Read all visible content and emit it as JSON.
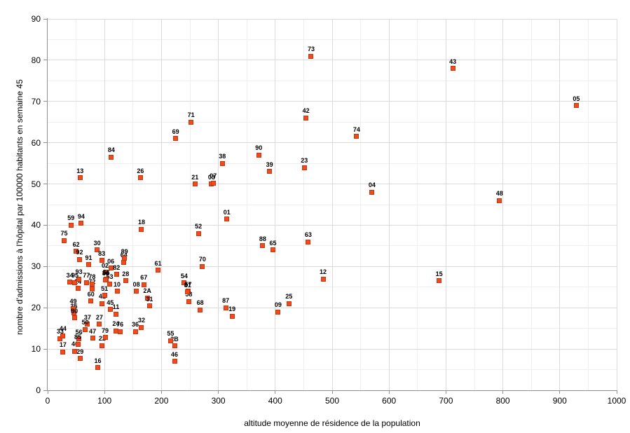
{
  "axes": {
    "x": {
      "title": "altitude moyenne de résidence de la population",
      "min": 0,
      "max": 1000,
      "major_step": 100,
      "minor_step": 50,
      "tick_labels": [
        "0",
        "100",
        "200",
        "300",
        "400",
        "500",
        "600",
        "700",
        "800",
        "900",
        "1000"
      ]
    },
    "y": {
      "title": "nombre d'admissions à l'hôpital par 100000 habitants en semaine 45",
      "min": 0,
      "max": 90,
      "major_step": 10,
      "minor_step": 5,
      "tick_labels": [
        "0",
        "10",
        "20",
        "30",
        "40",
        "50",
        "60",
        "70",
        "80",
        "90"
      ]
    }
  },
  "colors": {
    "point_fill": "#f04b1e",
    "point_border": "#c8370d",
    "grid_major": "#dadada",
    "grid_minor": "#efefef",
    "axis_line": "#8f8f8f",
    "label_text": "#000000"
  },
  "chart_data": {
    "type": "scatter",
    "title": "",
    "xlabel": "altitude moyenne de résidence de la population",
    "ylabel": "nombre d'admissions à l'hôpital par 100000 habitants en semaine 45",
    "xlim": [
      0,
      1000
    ],
    "ylim": [
      0,
      90
    ],
    "grid": true,
    "point_labels_shown": true,
    "points": [
      {
        "label": "01",
        "x": 315,
        "y": 41.5
      },
      {
        "label": "02",
        "x": 101,
        "y": 28.6
      },
      {
        "label": "03",
        "x": 288,
        "y": 50.0
      },
      {
        "label": "04",
        "x": 570,
        "y": 48.0
      },
      {
        "label": "05",
        "x": 929,
        "y": 69.0
      },
      {
        "label": "06",
        "x": 111,
        "y": 29.6
      },
      {
        "label": "07",
        "x": 291,
        "y": 50.2
      },
      {
        "label": "08",
        "x": 156,
        "y": 24.0
      },
      {
        "label": "09",
        "x": 405,
        "y": 19.0
      },
      {
        "label": "10",
        "x": 122,
        "y": 24.0
      },
      {
        "label": "11",
        "x": 120,
        "y": 18.5
      },
      {
        "label": "12",
        "x": 484,
        "y": 27.0
      },
      {
        "label": "13",
        "x": 57,
        "y": 51.5
      },
      {
        "label": "14",
        "x": 53,
        "y": 24.7
      },
      {
        "label": "15",
        "x": 688,
        "y": 26.5
      },
      {
        "label": "16",
        "x": 88,
        "y": 5.5
      },
      {
        "label": "17",
        "x": 27,
        "y": 9.3
      },
      {
        "label": "18",
        "x": 165,
        "y": 39.0
      },
      {
        "label": "19",
        "x": 324,
        "y": 18.0
      },
      {
        "label": "21",
        "x": 259,
        "y": 50.0
      },
      {
        "label": "22",
        "x": 96,
        "y": 10.8
      },
      {
        "label": "23",
        "x": 451,
        "y": 54.0
      },
      {
        "label": "24",
        "x": 120,
        "y": 14.4
      },
      {
        "label": "25",
        "x": 424,
        "y": 21.0
      },
      {
        "label": "26",
        "x": 163,
        "y": 51.5
      },
      {
        "label": "27",
        "x": 91,
        "y": 16.0
      },
      {
        "label": "28",
        "x": 137,
        "y": 26.5
      },
      {
        "label": "29",
        "x": 57,
        "y": 7.7
      },
      {
        "label": "2A",
        "x": 175,
        "y": 22.4
      },
      {
        "label": "2B",
        "x": 223,
        "y": 10.7
      },
      {
        "label": "30",
        "x": 87,
        "y": 34.0
      },
      {
        "label": "31",
        "x": 179,
        "y": 20.4
      },
      {
        "label": "32",
        "x": 165,
        "y": 15.2
      },
      {
        "label": "33",
        "x": 22,
        "y": 12.5
      },
      {
        "label": "34",
        "x": 39,
        "y": 26.2
      },
      {
        "label": "35",
        "x": 46,
        "y": 18.7
      },
      {
        "label": "36",
        "x": 154,
        "y": 14.2
      },
      {
        "label": "37",
        "x": 70,
        "y": 16.0
      },
      {
        "label": "38",
        "x": 307,
        "y": 55.0
      },
      {
        "label": "39",
        "x": 390,
        "y": 53.0
      },
      {
        "label": "40",
        "x": 48,
        "y": 9.5
      },
      {
        "label": "41",
        "x": 96,
        "y": 21.0
      },
      {
        "label": "42",
        "x": 454,
        "y": 66.0
      },
      {
        "label": "43",
        "x": 712,
        "y": 78.0
      },
      {
        "label": "44",
        "x": 27,
        "y": 13.2
      },
      {
        "label": "45",
        "x": 110,
        "y": 19.6
      },
      {
        "label": "46",
        "x": 223,
        "y": 7.0
      },
      {
        "label": "47",
        "x": 79,
        "y": 12.6
      },
      {
        "label": "48",
        "x": 794,
        "y": 46.0
      },
      {
        "label": "49",
        "x": 45,
        "y": 19.8
      },
      {
        "label": "50",
        "x": 66,
        "y": 14.7
      },
      {
        "label": "51",
        "x": 100,
        "y": 23.0
      },
      {
        "label": "52",
        "x": 265,
        "y": 38.0
      },
      {
        "label": "53",
        "x": 109,
        "y": 25.8
      },
      {
        "label": "54",
        "x": 240,
        "y": 26.0
      },
      {
        "label": "55",
        "x": 216,
        "y": 12.0
      },
      {
        "label": "56",
        "x": 55,
        "y": 12.4
      },
      {
        "label": "57",
        "x": 247,
        "y": 24.0
      },
      {
        "label": "58",
        "x": 248,
        "y": 21.5
      },
      {
        "label": "59",
        "x": 41,
        "y": 40.0
      },
      {
        "label": "60",
        "x": 76,
        "y": 21.6
      },
      {
        "label": "61",
        "x": 194,
        "y": 29.1
      },
      {
        "label": "62",
        "x": 50,
        "y": 33.7
      },
      {
        "label": "63",
        "x": 458,
        "y": 36.0
      },
      {
        "label": "64",
        "x": 134,
        "y": 31.0
      },
      {
        "label": "65",
        "x": 396,
        "y": 34.0
      },
      {
        "label": "66",
        "x": 103,
        "y": 26.9
      },
      {
        "label": "67",
        "x": 169,
        "y": 25.6
      },
      {
        "label": "68",
        "x": 268,
        "y": 19.5
      },
      {
        "label": "69",
        "x": 225,
        "y": 61.0
      },
      {
        "label": "70",
        "x": 272,
        "y": 30.0
      },
      {
        "label": "71",
        "x": 252,
        "y": 65.0
      },
      {
        "label": "72",
        "x": 78,
        "y": 24.6
      },
      {
        "label": "73",
        "x": 463,
        "y": 81.0
      },
      {
        "label": "74",
        "x": 543,
        "y": 61.5
      },
      {
        "label": "75",
        "x": 29,
        "y": 36.3
      },
      {
        "label": "76",
        "x": 127,
        "y": 14.2
      },
      {
        "label": "77",
        "x": 68,
        "y": 26.1
      },
      {
        "label": "78",
        "x": 78,
        "y": 25.8
      },
      {
        "label": "79",
        "x": 101,
        "y": 12.8
      },
      {
        "label": "80",
        "x": 47,
        "y": 17.5
      },
      {
        "label": "81",
        "x": 246,
        "y": 23.8
      },
      {
        "label": "82",
        "x": 121,
        "y": 28.1
      },
      {
        "label": "83",
        "x": 95,
        "y": 31.5
      },
      {
        "label": "84",
        "x": 112,
        "y": 56.5
      },
      {
        "label": "85",
        "x": 53,
        "y": 11.2
      },
      {
        "label": "86",
        "x": 102,
        "y": 26.7
      },
      {
        "label": "87",
        "x": 313,
        "y": 20.0
      },
      {
        "label": "88",
        "x": 378,
        "y": 35.0
      },
      {
        "label": "89",
        "x": 135,
        "y": 32.0
      },
      {
        "label": "90",
        "x": 371,
        "y": 57.0
      },
      {
        "label": "91",
        "x": 72,
        "y": 30.4
      },
      {
        "label": "92",
        "x": 56,
        "y": 31.7
      },
      {
        "label": "93",
        "x": 55,
        "y": 27.0
      },
      {
        "label": "94",
        "x": 59,
        "y": 40.5
      },
      {
        "label": "95",
        "x": 48,
        "y": 26.1
      }
    ]
  }
}
